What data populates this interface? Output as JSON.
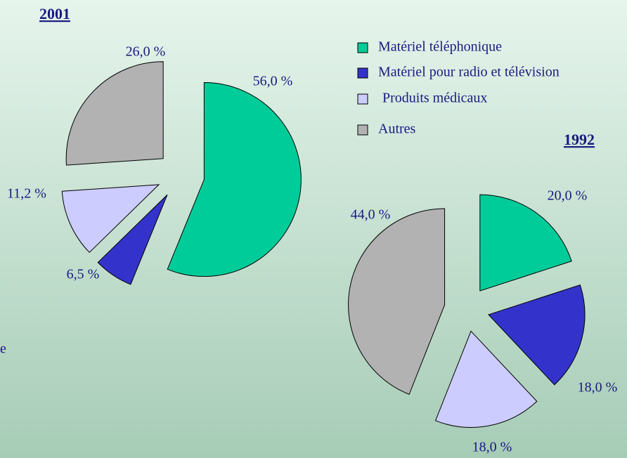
{
  "chart_data": [
    {
      "type": "pie",
      "title": "2001",
      "categories": [
        "Matériel  téléphonique",
        "Matériel pour radio et télévision",
        "Produits médicaux",
        "Autres"
      ],
      "values": [
        56.0,
        6.5,
        11.2,
        26.0
      ],
      "value_labels": [
        "56,0 %",
        "6,5 %",
        "11,2 %",
        "26,0 %"
      ],
      "colors": [
        "#00cc99",
        "#3333cc",
        "#ccccff",
        "#b2b2b2"
      ]
    },
    {
      "type": "pie",
      "title": "1992",
      "values": [
        20.0,
        18.0,
        18.0,
        44.0
      ],
      "value_labels": [
        "20,0 %",
        "18,0 %",
        "18,0 %",
        "44,0 %"
      ],
      "colors": [
        "#00cc99",
        "#3333cc",
        "#ccccff",
        "#b2b2b2"
      ]
    }
  ],
  "side_text": "e"
}
